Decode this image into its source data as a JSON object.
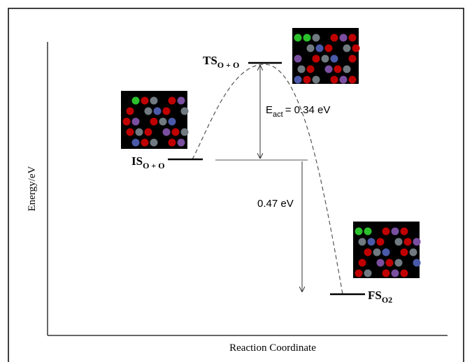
{
  "axes": {
    "y_label": "Energy/eV",
    "x_label": "Reaction Coordinate"
  },
  "states": {
    "initial": {
      "main": "IS",
      "sub": "O + O"
    },
    "transition": {
      "main": "TS",
      "sub": "O + O"
    },
    "final": {
      "main": "FS",
      "sub": "O2"
    }
  },
  "barrier": {
    "symbol": "E",
    "sub": "act",
    "text": "= 0.34 eV"
  },
  "reaction_energy": "0.47 eV"
}
